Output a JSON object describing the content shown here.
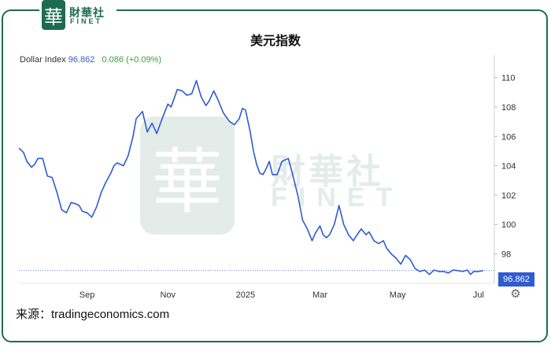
{
  "brand": {
    "badge_glyph": "華",
    "cn": "財華社",
    "en": "FINET",
    "color": "#1f6b52"
  },
  "source_text": "来源：tradingeconomics.com",
  "chart_data": {
    "type": "line",
    "title": "美元指数",
    "xlabel": "",
    "ylabel": "",
    "legend": {
      "name": "Dollar Index",
      "last": "96.862",
      "change": "0.086 (+0.09%)"
    },
    "last_price_label": "96.862",
    "ylim": [
      96.1,
      111.0
    ],
    "yticks": [
      98,
      100,
      102,
      104,
      106,
      108,
      110
    ],
    "xlim": [
      0,
      300
    ],
    "xticks": [
      {
        "x": 43,
        "label": "Sep"
      },
      {
        "x": 94,
        "label": "Nov"
      },
      {
        "x": 143,
        "label": "2025"
      },
      {
        "x": 190,
        "label": "Mar"
      },
      {
        "x": 239,
        "label": "May"
      },
      {
        "x": 290,
        "label": "Jul"
      }
    ],
    "grid": false,
    "line_color": "#2f5bd3",
    "series": [
      {
        "name": "Dollar Index",
        "x": [
          0,
          3,
          5,
          8,
          10,
          12,
          15,
          18,
          21,
          24,
          27,
          30,
          33,
          36,
          38,
          40,
          43,
          46,
          49,
          52,
          55,
          58,
          60,
          62,
          66,
          69,
          72,
          74,
          78,
          81,
          84,
          87,
          90,
          94,
          96,
          98,
          100,
          103,
          106,
          109,
          112,
          115,
          118,
          120,
          123,
          126,
          129,
          131,
          133,
          136,
          139,
          141,
          143,
          146,
          148,
          150,
          152,
          154,
          156,
          158,
          160,
          163,
          166,
          170,
          173,
          176,
          179,
          182,
          185,
          187,
          190,
          192,
          194,
          196,
          199,
          202,
          205,
          208,
          211,
          214,
          216,
          219,
          221,
          224,
          227,
          230,
          232,
          235,
          238,
          241,
          244,
          247,
          250,
          253,
          256,
          259,
          262,
          265,
          268,
          271,
          274,
          277,
          280,
          283,
          285,
          287,
          290,
          293
        ],
        "values": [
          105.2,
          104.9,
          104.3,
          103.9,
          104.1,
          104.5,
          104.5,
          103.3,
          103.2,
          102.2,
          101.0,
          100.8,
          101.5,
          101.4,
          101.3,
          100.9,
          100.8,
          100.5,
          101.2,
          102.2,
          102.9,
          103.5,
          104.0,
          104.2,
          104.0,
          104.7,
          106.0,
          107.2,
          107.7,
          106.3,
          106.9,
          106.2,
          107.1,
          108.2,
          108.0,
          108.6,
          109.2,
          109.1,
          108.8,
          108.9,
          109.8,
          108.7,
          108.1,
          108.4,
          109.1,
          108.4,
          107.6,
          107.3,
          107.0,
          106.8,
          107.2,
          107.9,
          107.8,
          106.3,
          105.0,
          104.1,
          103.5,
          103.4,
          103.8,
          104.3,
          103.4,
          103.4,
          104.3,
          104.5,
          103.3,
          102.0,
          100.3,
          99.7,
          98.9,
          99.4,
          99.9,
          99.3,
          99.1,
          99.3,
          100.0,
          101.3,
          100.0,
          99.3,
          98.9,
          99.4,
          99.7,
          99.3,
          99.5,
          98.9,
          98.7,
          98.9,
          98.4,
          98.0,
          97.7,
          97.3,
          97.9,
          97.6,
          97.0,
          96.8,
          96.9,
          96.6,
          96.9,
          96.8,
          96.8,
          96.7,
          96.9,
          96.86,
          96.8,
          96.9,
          96.6,
          96.8,
          96.8,
          96.862
        ]
      }
    ]
  }
}
